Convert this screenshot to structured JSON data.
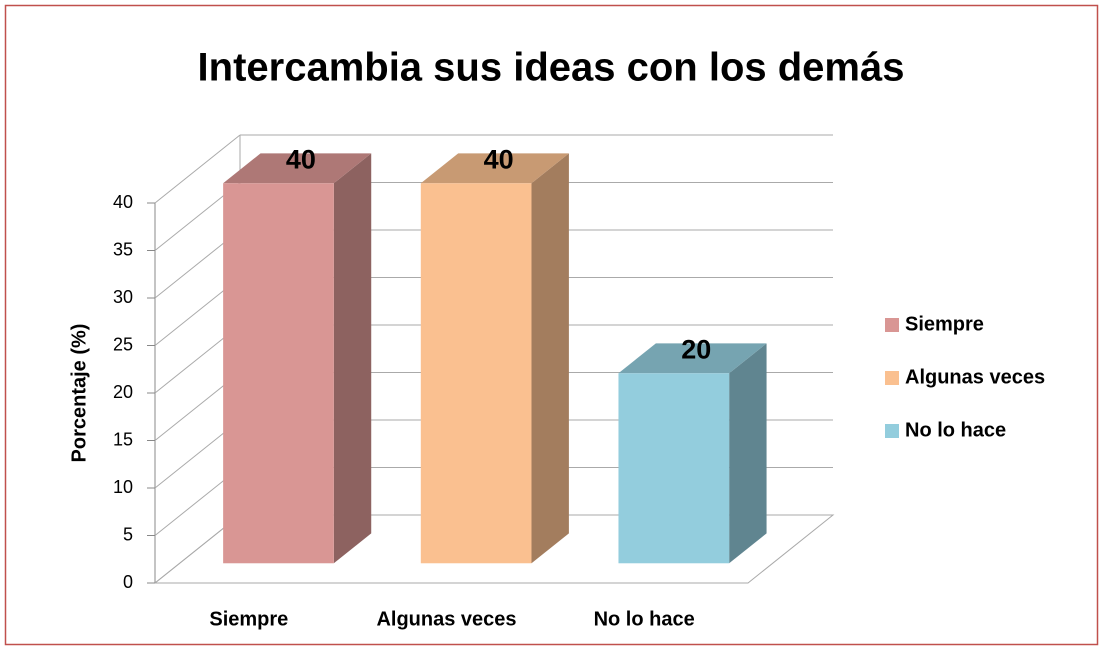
{
  "chart_data": {
    "type": "bar3d",
    "title": "Intercambia sus ideas con los demás",
    "y_label": "Porcentaje (%)",
    "categories": [
      "Siempre",
      "Algunas veces",
      "No lo hace"
    ],
    "values": [
      40,
      40,
      20
    ],
    "colors": [
      "#d99694",
      "#fac090",
      "#93cddd"
    ],
    "ylim": [
      0,
      40
    ],
    "yticks": [
      0,
      5,
      10,
      15,
      20,
      25,
      30,
      35,
      40
    ],
    "grid": true,
    "legend": "right"
  }
}
